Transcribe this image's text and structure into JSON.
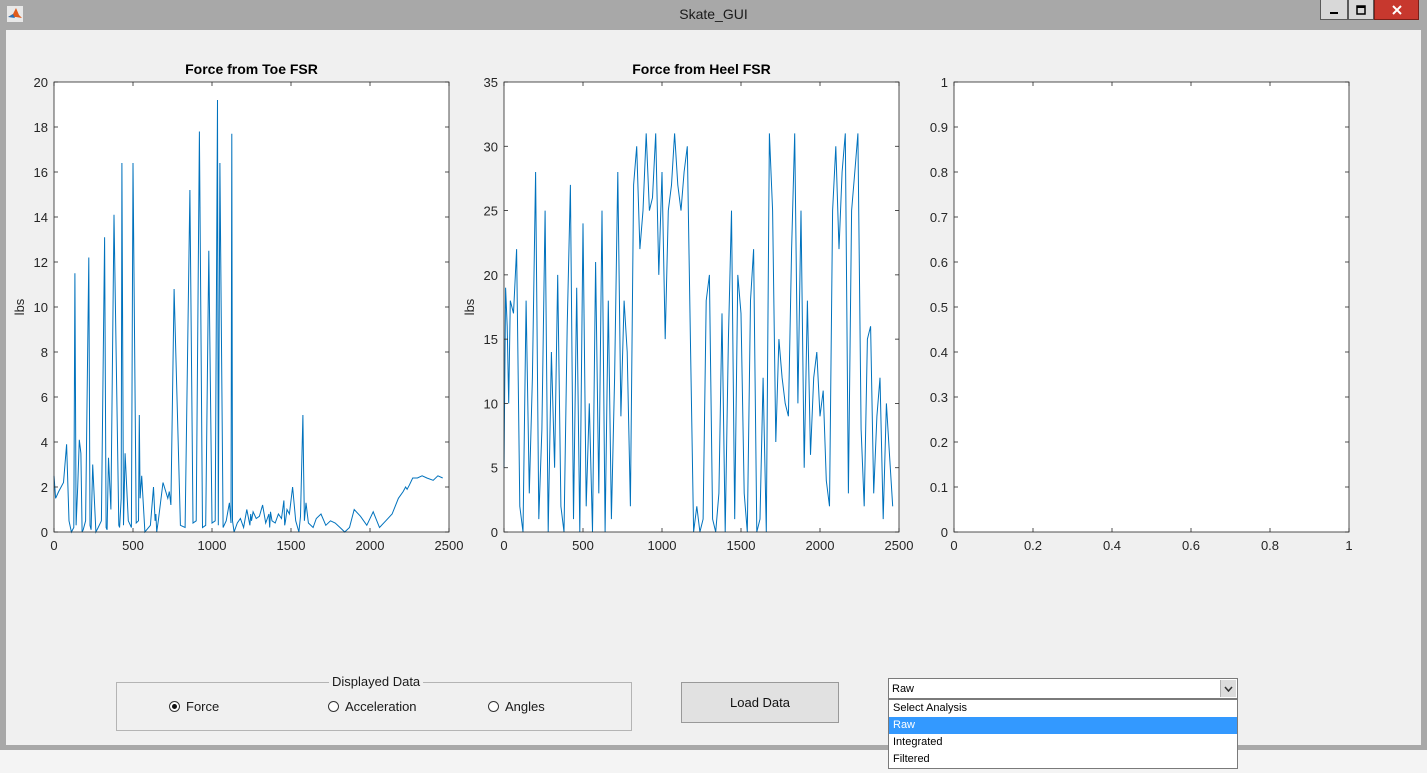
{
  "window": {
    "title": "Skate_GUI"
  },
  "panel": {
    "title": "Displayed Data",
    "options": [
      {
        "label": "Force",
        "selected": true
      },
      {
        "label": "Acceleration",
        "selected": false
      },
      {
        "label": "Angles",
        "selected": false
      }
    ]
  },
  "load_button": {
    "label": "Load Data"
  },
  "analysis_dropdown": {
    "value": "Raw",
    "options": [
      "Select Analysis",
      "Raw",
      "Integrated",
      "Filtered"
    ],
    "highlighted_index": 1
  },
  "colors": {
    "line": "#0072bd",
    "close_button": "#c7382e",
    "highlight": "#3399ff"
  },
  "chart_data": [
    {
      "type": "line",
      "title": "Force from Toe FSR",
      "xlabel": "",
      "ylabel": "lbs",
      "xlim": [
        0,
        2500
      ],
      "ylim": [
        0,
        20
      ],
      "xticks": [
        0,
        500,
        1000,
        1500,
        2000,
        2500
      ],
      "yticks": [
        0,
        2,
        4,
        6,
        8,
        10,
        12,
        14,
        16,
        18,
        20
      ],
      "xtick_labels": [
        "0",
        "500",
        "1000",
        "1500",
        "2000",
        "2500"
      ],
      "ytick_labels": [
        "0",
        "2",
        "4",
        "6",
        "8",
        "10",
        "12",
        "14",
        "16",
        "18",
        "20"
      ],
      "series": [
        {
          "x": [
            0,
            10,
            30,
            60,
            80,
            95,
            110,
            125,
            132,
            140,
            150,
            160,
            170,
            178,
            185,
            200,
            220,
            228,
            235,
            245,
            265,
            280,
            300,
            320,
            330,
            336,
            345,
            360,
            380,
            410,
            415,
            425,
            430,
            440,
            450,
            470,
            490,
            500,
            520,
            535,
            540,
            545,
            555,
            575,
            610,
            630,
            640,
            645,
            650,
            660,
            690,
            720,
            730,
            740,
            760,
            800,
            830,
            860,
            880,
            900,
            920,
            940,
            960,
            980,
            1000,
            1020,
            1035,
            1040,
            1050,
            1070,
            1090,
            1110,
            1120,
            1125,
            1130,
            1140,
            1160,
            1180,
            1200,
            1220,
            1240,
            1245,
            1250,
            1260,
            1280,
            1300,
            1320,
            1340,
            1360,
            1365,
            1370,
            1380,
            1400,
            1420,
            1440,
            1455,
            1460,
            1465,
            1475,
            1490,
            1510,
            1530,
            1550,
            1560,
            1575,
            1580,
            1585,
            1595,
            1610,
            1640,
            1660,
            1690,
            1720,
            1750,
            1780,
            1810,
            1840,
            1870,
            1900,
            1940,
            1980,
            2020,
            2060,
            2100,
            2140,
            2180,
            2210,
            2225,
            2235,
            2250,
            2270,
            2300,
            2330,
            2360,
            2400,
            2430,
            2460
          ],
          "y": [
            2.5,
            1.5,
            1.8,
            2.2,
            3.9,
            0.5,
            0,
            0.2,
            11.5,
            0.3,
            2.0,
            4.1,
            3.5,
            0,
            0.1,
            0.5,
            12.2,
            0.3,
            0.1,
            3.0,
            0,
            0.2,
            0.5,
            13.1,
            0.2,
            0.1,
            3.3,
            1.0,
            14.1,
            0.3,
            0.2,
            1.5,
            16.4,
            0.3,
            3.5,
            0.5,
            0.2,
            16.4,
            0.4,
            0.5,
            5.2,
            1.5,
            2.5,
            0,
            0.3,
            2.0,
            0.5,
            0.8,
            0,
            0.5,
            2.2,
            1.5,
            1.8,
            1.2,
            10.8,
            0.3,
            0.2,
            15.2,
            0.4,
            0.5,
            17.8,
            0.2,
            0.3,
            12.5,
            0.4,
            0.5,
            19.2,
            0.3,
            16.4,
            0.2,
            0.5,
            1.3,
            0.4,
            17.7,
            0.5,
            0,
            0.4,
            0.6,
            0.2,
            1.0,
            0.3,
            0.8,
            0.5,
            0.9,
            0.6,
            0.7,
            1.2,
            0.4,
            0.8,
            0.2,
            0.9,
            0.5,
            0.4,
            0.8,
            0.6,
            1.4,
            0.3,
            0.5,
            1.0,
            0.8,
            2.0,
            0.5,
            0,
            0.7,
            5.2,
            2.8,
            0.5,
            1.3,
            0.4,
            0.2,
            0.6,
            0.8,
            0.3,
            0.5,
            0.4,
            0.2,
            0,
            0.2,
            1.0,
            0.7,
            0.3,
            0.9,
            0.2,
            0.5,
            0.8,
            1.5,
            1.8,
            2.0,
            1.9,
            2.1,
            2.4,
            2.4,
            2.5,
            2.4,
            2.3,
            2.5,
            2.4
          ]
        }
      ]
    },
    {
      "type": "line",
      "title": "Force from Heel FSR",
      "xlabel": "",
      "ylabel": "lbs",
      "xlim": [
        0,
        2500
      ],
      "ylim": [
        0,
        35
      ],
      "xticks": [
        0,
        500,
        1000,
        1500,
        2000,
        2500
      ],
      "yticks": [
        0,
        5,
        10,
        15,
        20,
        25,
        30,
        35
      ],
      "xtick_labels": [
        "0",
        "500",
        "1000",
        "1500",
        "2000",
        "2500"
      ],
      "ytick_labels": [
        "0",
        "5",
        "10",
        "15",
        "20",
        "25",
        "30",
        "35"
      ],
      "series": [
        {
          "x": [
            0,
            10,
            20,
            30,
            40,
            60,
            80,
            100,
            120,
            140,
            160,
            180,
            200,
            220,
            240,
            260,
            280,
            300,
            320,
            340,
            360,
            380,
            400,
            420,
            440,
            460,
            480,
            500,
            520,
            540,
            560,
            580,
            600,
            620,
            640,
            660,
            680,
            700,
            720,
            740,
            760,
            780,
            800,
            820,
            840,
            860,
            880,
            900,
            920,
            940,
            960,
            980,
            1000,
            1020,
            1040,
            1060,
            1080,
            1100,
            1120,
            1140,
            1160,
            1180,
            1200,
            1220,
            1240,
            1260,
            1280,
            1300,
            1320,
            1340,
            1360,
            1380,
            1400,
            1420,
            1440,
            1460,
            1480,
            1500,
            1520,
            1540,
            1560,
            1580,
            1600,
            1620,
            1640,
            1660,
            1680,
            1700,
            1720,
            1740,
            1760,
            1780,
            1800,
            1820,
            1840,
            1860,
            1880,
            1900,
            1920,
            1940,
            1960,
            1980,
            2000,
            2020,
            2040,
            2060,
            2080,
            2100,
            2120,
            2140,
            2160,
            2180,
            2200,
            2220,
            2240,
            2260,
            2280,
            2300,
            2320,
            2340,
            2360,
            2380,
            2400,
            2420,
            2440,
            2460
          ],
          "y": [
            5,
            19,
            16,
            10,
            18,
            17,
            22,
            2,
            0,
            18,
            3,
            12,
            28,
            1,
            8,
            25,
            0,
            14,
            5,
            20,
            2,
            0,
            16,
            27,
            1,
            19,
            0,
            24,
            2,
            10,
            0,
            21,
            3,
            25,
            0,
            18,
            1,
            12,
            28,
            9,
            18,
            14,
            2,
            27,
            30,
            22,
            25,
            31,
            25,
            26,
            31,
            20,
            28,
            15,
            25,
            27,
            31,
            27,
            25,
            28,
            30,
            15,
            0,
            2,
            0,
            1,
            18,
            20,
            1,
            0,
            3,
            17,
            0,
            15,
            25,
            1,
            20,
            17,
            3,
            0,
            18,
            22,
            0,
            1,
            12,
            0,
            31,
            25,
            7,
            15,
            12,
            10,
            9,
            22,
            31,
            10,
            25,
            5,
            18,
            6,
            12,
            14,
            9,
            11,
            4,
            2,
            25,
            30,
            22,
            28,
            31,
            3,
            25,
            28,
            31,
            8,
            2,
            15,
            16,
            3,
            9,
            12,
            1,
            10,
            6,
            2
          ]
        }
      ]
    },
    {
      "type": "line",
      "title": "",
      "xlabel": "",
      "ylabel": "",
      "xlim": [
        0,
        1
      ],
      "ylim": [
        0,
        1
      ],
      "xticks": [
        0,
        0.2,
        0.4,
        0.6,
        0.8,
        1
      ],
      "yticks": [
        0,
        0.1,
        0.2,
        0.3,
        0.4,
        0.5,
        0.6,
        0.7,
        0.8,
        0.9,
        1
      ],
      "xtick_labels": [
        "0",
        "0.2",
        "0.4",
        "0.6",
        "0.8",
        "1"
      ],
      "ytick_labels": [
        "0",
        "0.1",
        "0.2",
        "0.3",
        "0.4",
        "0.5",
        "0.6",
        "0.7",
        "0.8",
        "0.9",
        "1"
      ],
      "series": []
    }
  ]
}
